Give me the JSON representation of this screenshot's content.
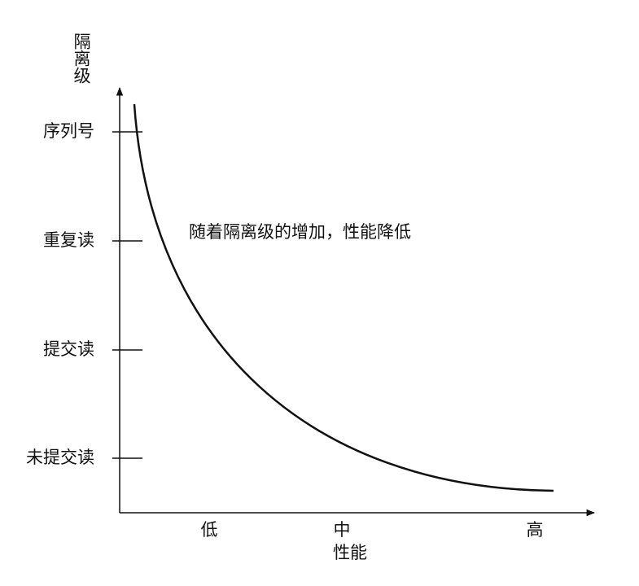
{
  "y_axis": {
    "title": "隔离级",
    "labels": [
      "序列号",
      "重复读",
      "提交读",
      "未提交读"
    ]
  },
  "x_axis": {
    "title": "性能",
    "labels": [
      "低",
      "中",
      "高"
    ]
  },
  "annotation": "随着隔离级的增加，性能降低"
}
